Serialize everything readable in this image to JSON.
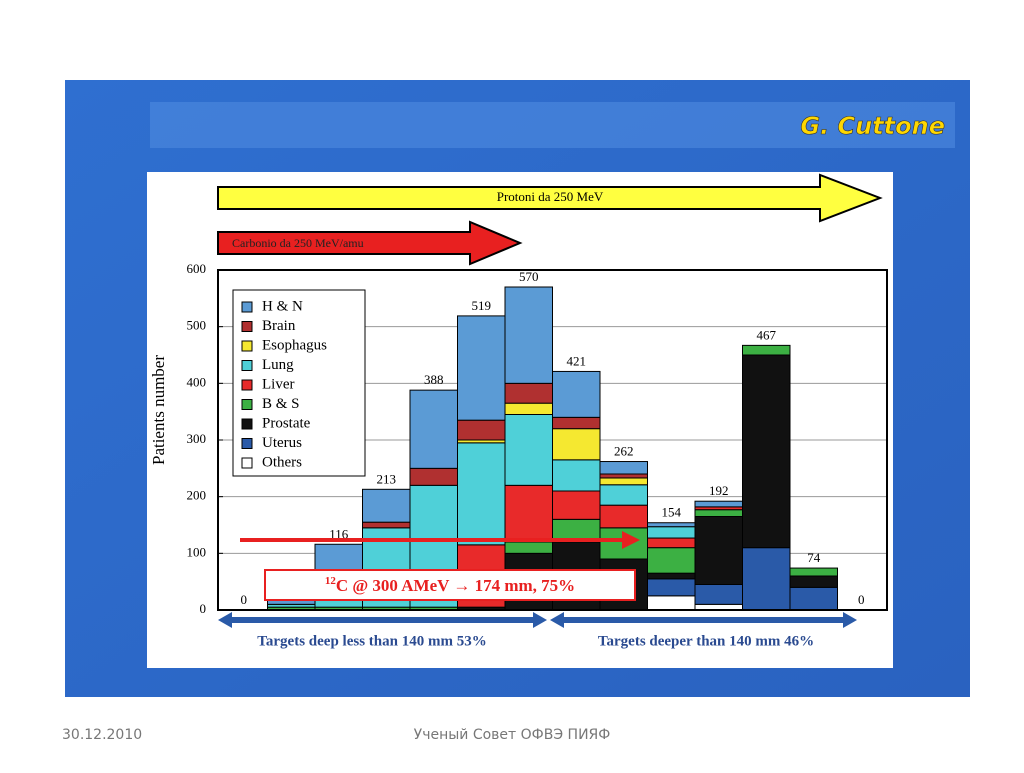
{
  "header": {
    "author": "G. Cuttone"
  },
  "chart_data": {
    "type": "stacked_bar",
    "arrows": {
      "protons": "Protoni da 250 MeV",
      "carbon": "Carbonio da 250 MeV/amu"
    },
    "ylabel": "Patients number",
    "ylim": [
      0,
      600
    ],
    "yticks": [
      0,
      100,
      200,
      300,
      400,
      500,
      600
    ],
    "totals": [
      0,
      null,
      116,
      213,
      388,
      519,
      570,
      421,
      262,
      154,
      192,
      467,
      74,
      0
    ],
    "series": [
      {
        "name": "H & N",
        "color": "#5b9bd5",
        "values": [
          0,
          10,
          61,
          58,
          138,
          184,
          170,
          81,
          22,
          7,
          10,
          0,
          0,
          0
        ]
      },
      {
        "name": "Brain",
        "color": "#b03030",
        "values": [
          0,
          0,
          0,
          10,
          30,
          35,
          35,
          20,
          7,
          0,
          0,
          0,
          0,
          0
        ]
      },
      {
        "name": "Esophagus",
        "color": "#f5e830",
        "values": [
          0,
          0,
          0,
          0,
          0,
          5,
          20,
          55,
          12,
          0,
          0,
          0,
          0,
          0
        ]
      },
      {
        "name": "Lung",
        "color": "#4fd0d8",
        "values": [
          0,
          5,
          50,
          140,
          215,
          180,
          125,
          55,
          36,
          20,
          0,
          0,
          0,
          0
        ]
      },
      {
        "name": "Liver",
        "color": "#e82a2a",
        "values": [
          0,
          0,
          0,
          0,
          0,
          110,
          100,
          50,
          40,
          17,
          5,
          0,
          0,
          0
        ]
      },
      {
        "name": "B & S",
        "color": "#3cb043",
        "values": [
          0,
          5,
          5,
          5,
          5,
          0,
          20,
          40,
          55,
          45,
          12,
          17,
          14,
          0
        ]
      },
      {
        "name": "Prostate",
        "color": "#111111",
        "values": [
          0,
          0,
          0,
          0,
          0,
          5,
          100,
          120,
          90,
          10,
          120,
          340,
          20,
          0
        ]
      },
      {
        "name": "Uterus",
        "color": "#2a5aa8",
        "values": [
          0,
          0,
          0,
          0,
          0,
          0,
          0,
          0,
          0,
          30,
          35,
          110,
          40,
          0
        ]
      },
      {
        "name": "Others",
        "color": "#ffffff",
        "values": [
          0,
          0,
          0,
          0,
          0,
          0,
          0,
          0,
          0,
          25,
          10,
          0,
          0,
          0
        ]
      }
    ],
    "annotation": {
      "sup": "12",
      "text": "C @ 300 AMeV → 174 mm, 75%"
    },
    "targets": {
      "shallow": "Targets deep less than 140 mm 53%",
      "deep": "Targets deeper than 140 mm 46%"
    }
  },
  "footer": {
    "date": "30.12.2010",
    "org": "Ученый Совет ОФВЭ ПИЯФ"
  }
}
